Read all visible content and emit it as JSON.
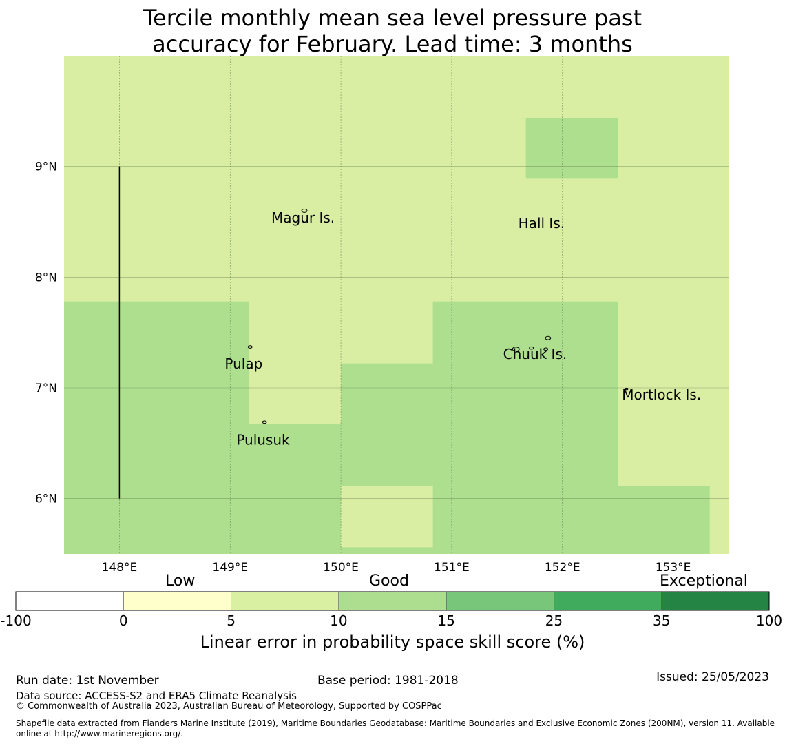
{
  "title": {
    "line1": "Tercile monthly mean sea level pressure past",
    "line2": "accuracy for February. Lead time: 3 months"
  },
  "chart_data": {
    "type": "heatmap",
    "x_range": [
      147.5,
      153.5
    ],
    "y_range": [
      5.5,
      10.0
    ],
    "x_ticks": [
      148,
      149,
      150,
      151,
      152,
      153
    ],
    "x_tick_labels": [
      "148°E",
      "149°E",
      "150°E",
      "151°E",
      "152°E",
      "153°E"
    ],
    "y_ticks": [
      6,
      7,
      8,
      9
    ],
    "y_tick_labels": [
      "6°N",
      "7°N",
      "8°N",
      "9°N"
    ],
    "background_category": "5 to 10",
    "cells": [
      {
        "lon": [
          151.67,
          152.5
        ],
        "lat": [
          8.89,
          9.44
        ],
        "category": "10 to 15"
      },
      {
        "lon": [
          147.5,
          149.17
        ],
        "lat": [
          5.5,
          7.78
        ],
        "category": "10 to 15"
      },
      {
        "lon": [
          149.17,
          150.0
        ],
        "lat": [
          5.5,
          6.67
        ],
        "category": "10 to 15"
      },
      {
        "lon": [
          150.0,
          150.83
        ],
        "lat": [
          5.5,
          7.22
        ],
        "category": "10 to 15"
      },
      {
        "lon": [
          150.83,
          152.5
        ],
        "lat": [
          5.5,
          7.78
        ],
        "category": "10 to 15"
      },
      {
        "lon": [
          152.5,
          153.33
        ],
        "lat": [
          5.5,
          6.11
        ],
        "category": "10 to 15"
      },
      {
        "lon": [
          150.0,
          150.83
        ],
        "lat": [
          5.56,
          6.11
        ],
        "category": "5 to 10"
      }
    ],
    "boundary_line": {
      "lon": 148.0,
      "lat": [
        6.0,
        9.0
      ]
    },
    "places": [
      {
        "name": "Magur Is.",
        "lon": 149.67,
        "lat": 8.53
      },
      {
        "name": "Hall Is.",
        "lon": 151.9,
        "lat": 8.5
      },
      {
        "name": "Pulap",
        "lon": 149.2,
        "lat": 7.25
      },
      {
        "name": "Chuuk Is.",
        "lon": 151.85,
        "lat": 7.35
      },
      {
        "name": "Mortlock Is.",
        "lon": 152.6,
        "lat": 6.93
      },
      {
        "name": "Pulusuk",
        "lon": 149.33,
        "lat": 6.58
      }
    ],
    "colorbar": {
      "boundaries": [
        "-100",
        "0",
        "5",
        "10",
        "15",
        "25",
        "35",
        "100"
      ],
      "colors": [
        "#ffffff",
        "#ffffcc",
        "#d9f0a3",
        "#addd8e",
        "#78c679",
        "#41ab5d",
        "#238443"
      ],
      "category_labels": [
        "Low",
        "Good",
        "Exceptional"
      ],
      "label": "Linear error in probability space skill score (%)"
    }
  },
  "colors": {
    "5 to 10": "#d9eea3",
    "10 to 15": "#addf8e",
    "grid": "#5a7a4a"
  },
  "footer": {
    "run_date": "Run date: 1st November",
    "base_period": "Base period: 1981-2018",
    "issued": "Issued: 25/05/2023",
    "data_source": "Data source: ACCESS-S2 and ERA5 Climate Reanalysis",
    "copyright": "© Commonwealth of Australia 2023, Australian Bureau of Meteorology, Supported by COSPPac",
    "shapefile_line1": "Shapefile data extracted from Flanders Marine Institute (2019), Maritime Boundaries Geodatabase: Maritime Boundaries and Exclusive Economic Zones (200NM), version 11. Available",
    "shapefile_line2": "online at http://www.marineregions.org/."
  }
}
